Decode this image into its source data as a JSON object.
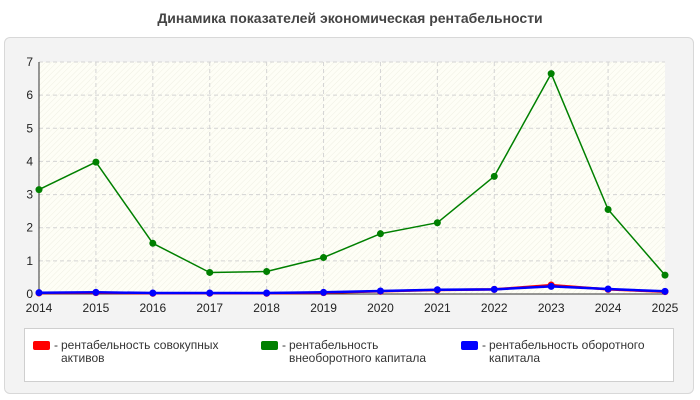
{
  "chart_data": {
    "type": "line",
    "title": "Динамика показателей экономическая рентабельности",
    "xlabel": "",
    "ylabel": "",
    "categories": [
      "2014",
      "2015",
      "2016",
      "2017",
      "2018",
      "2019",
      "2020",
      "2021",
      "2022",
      "2023",
      "2024",
      "2025"
    ],
    "ylim": [
      0,
      7
    ],
    "yticks": [
      0,
      1,
      2,
      3,
      4,
      5,
      6,
      7
    ],
    "grid": true,
    "legend_position": "bottom",
    "series": [
      {
        "name": "рентабельность совокупных активов",
        "color": "#ff0000",
        "values": [
          0.03,
          0.04,
          0.02,
          0.02,
          0.02,
          0.04,
          0.08,
          0.12,
          0.14,
          0.27,
          0.14,
          0.07
        ]
      },
      {
        "name": "рентабельность внеоборотного капитала",
        "color": "#008000",
        "values": [
          3.15,
          3.98,
          1.53,
          0.65,
          0.68,
          1.1,
          1.82,
          2.15,
          3.55,
          6.65,
          2.55,
          0.57
        ]
      },
      {
        "name": "рентабельность оборотного капитала",
        "color": "#0000ff",
        "values": [
          0.04,
          0.05,
          0.03,
          0.03,
          0.03,
          0.05,
          0.09,
          0.13,
          0.14,
          0.23,
          0.15,
          0.08
        ]
      }
    ]
  }
}
